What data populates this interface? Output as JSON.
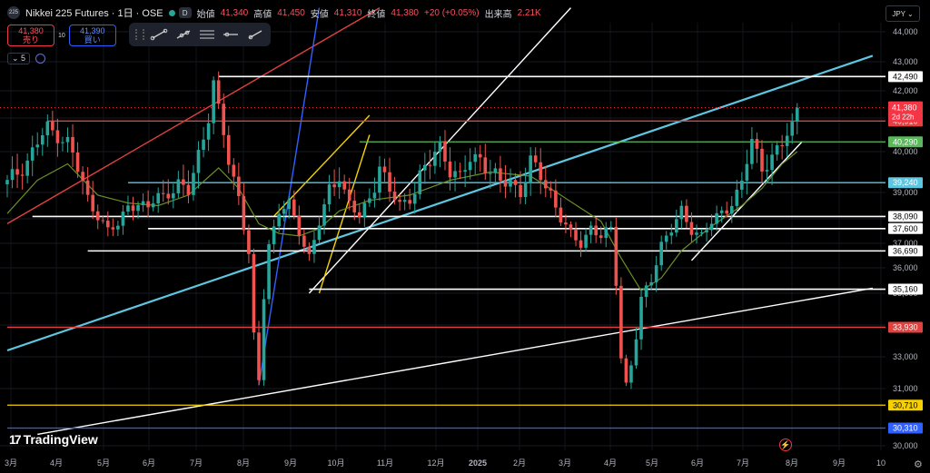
{
  "header": {
    "exchange_badge": "225",
    "symbol": "Nikkei 225 Futures · 1日 · OSE",
    "badge_d": "D",
    "status_colors": [
      "#26a69a",
      "#f23645",
      "#f7a600"
    ],
    "open_label": "始値",
    "open": "41,340",
    "high_label": "高値",
    "high": "41,450",
    "low_label": "安値",
    "low": "41,310",
    "close_label": "終値",
    "close": "41,380",
    "change": "+20 (+0.05%)",
    "volume_label": "出来高",
    "volume": "2.21K"
  },
  "trade": {
    "sell_price": "41,380",
    "sell_label": "売り",
    "spread": "10",
    "buy_price": "41,390",
    "buy_label": "買い"
  },
  "toolbar": {
    "icons": [
      "drag-handle-icon",
      "trend-line-icon",
      "trend-line-alt-icon",
      "parallel-channel-icon",
      "horizontal-line-icon",
      "ray-icon"
    ]
  },
  "indicator": {
    "count": "5"
  },
  "currency": "JPY",
  "brand": "TradingView",
  "chart_data": {
    "type": "candlestick",
    "y_ticks": [
      30000,
      31000,
      33000,
      34000,
      35000,
      36000,
      37000,
      38000,
      39000,
      40000,
      41000,
      42000,
      43000,
      44000
    ],
    "y_tick_labels": [
      "30,000",
      "31,000",
      "33,000",
      "34,000",
      "35,000",
      "36,000",
      "37,000",
      "38,000",
      "39,000",
      "40,000",
      "41,000",
      "42,000",
      "43,000",
      "44,000"
    ],
    "ylim": [
      29820,
      44820
    ],
    "x_ticks": [
      "3月",
      "4月",
      "5月",
      "6月",
      "7月",
      "8月",
      "9月",
      "10月",
      "11月",
      "12月",
      "2025",
      "2月",
      "3月",
      "4月",
      "5月",
      "6月",
      "7月",
      "8月",
      "9月",
      "10"
    ],
    "price_path": [
      [
        0,
        39200
      ],
      [
        4,
        39800
      ],
      [
        8,
        40700
      ],
      [
        12,
        40300
      ],
      [
        16,
        38800
      ],
      [
        20,
        37500
      ],
      [
        22,
        37700
      ],
      [
        24,
        38600
      ],
      [
        28,
        38400
      ],
      [
        30,
        38900
      ],
      [
        34,
        39100
      ],
      [
        36,
        39000
      ],
      [
        38,
        40000
      ],
      [
        40,
        41000
      ],
      [
        41,
        42200
      ],
      [
        42,
        41300
      ],
      [
        44,
        39800
      ],
      [
        46,
        38900
      ],
      [
        48,
        36500
      ],
      [
        49,
        33500
      ],
      [
        50,
        31500
      ],
      [
        51,
        35000
      ],
      [
        52,
        37000
      ],
      [
        54,
        38300
      ],
      [
        56,
        38500
      ],
      [
        58,
        37500
      ],
      [
        60,
        36500
      ],
      [
        62,
        37800
      ],
      [
        64,
        39000
      ],
      [
        66,
        39500
      ],
      [
        68,
        38600
      ],
      [
        70,
        38000
      ],
      [
        72,
        38800
      ],
      [
        74,
        39700
      ],
      [
        76,
        39000
      ],
      [
        78,
        38500
      ],
      [
        80,
        38800
      ],
      [
        82,
        39400
      ],
      [
        84,
        39700
      ],
      [
        86,
        40200
      ],
      [
        88,
        39600
      ],
      [
        90,
        39300
      ],
      [
        92,
        39800
      ],
      [
        94,
        39900
      ],
      [
        96,
        39500
      ],
      [
        98,
        39200
      ],
      [
        100,
        39300
      ],
      [
        102,
        39000
      ],
      [
        104,
        39700
      ],
      [
        106,
        39400
      ],
      [
        108,
        39000
      ],
      [
        110,
        38000
      ],
      [
        112,
        37300
      ],
      [
        114,
        37000
      ],
      [
        116,
        37700
      ],
      [
        118,
        37200
      ],
      [
        120,
        37600
      ],
      [
        121,
        35500
      ],
      [
        122,
        33000
      ],
      [
        123,
        31300
      ],
      [
        124,
        32500
      ],
      [
        125,
        33600
      ],
      [
        126,
        34700
      ],
      [
        128,
        35600
      ],
      [
        130,
        37000
      ],
      [
        132,
        37500
      ],
      [
        134,
        38300
      ],
      [
        136,
        37600
      ],
      [
        138,
        37300
      ],
      [
        140,
        37800
      ],
      [
        142,
        38300
      ],
      [
        144,
        38600
      ],
      [
        146,
        39200
      ],
      [
        148,
        40300
      ],
      [
        150,
        39700
      ],
      [
        152,
        39800
      ],
      [
        154,
        40200
      ],
      [
        156,
        40800
      ],
      [
        157,
        41380
      ]
    ],
    "moving_average": [
      [
        0,
        38200
      ],
      [
        6,
        39300
      ],
      [
        12,
        39700
      ],
      [
        18,
        38900
      ],
      [
        24,
        38600
      ],
      [
        30,
        38500
      ],
      [
        36,
        38900
      ],
      [
        42,
        39600
      ],
      [
        46,
        39100
      ],
      [
        50,
        37800
      ],
      [
        54,
        37400
      ],
      [
        58,
        37300
      ],
      [
        62,
        37600
      ],
      [
        66,
        38300
      ],
      [
        72,
        38700
      ],
      [
        80,
        38900
      ],
      [
        88,
        39300
      ],
      [
        96,
        39500
      ],
      [
        104,
        39400
      ],
      [
        110,
        38900
      ],
      [
        114,
        38400
      ],
      [
        118,
        37900
      ],
      [
        122,
        36400
      ],
      [
        126,
        35100
      ],
      [
        130,
        35600
      ],
      [
        134,
        36700
      ],
      [
        140,
        37700
      ],
      [
        146,
        38500
      ],
      [
        150,
        39100
      ],
      [
        154,
        39700
      ],
      [
        157,
        40000
      ]
    ],
    "horizontal_levels": [
      {
        "value": 42490,
        "color": "#ffffff",
        "label": "42,490",
        "x_start": 42
      },
      {
        "value": 40910,
        "color": "#e0423f",
        "label": "40,910",
        "x_start": 8
      },
      {
        "value": 40290,
        "color": "#5cb85c",
        "label": "40,290",
        "x_start": 70
      },
      {
        "value": 39240,
        "color": "#5fc6e0",
        "label": "39,240",
        "x_start": 24
      },
      {
        "value": 38090,
        "color": "#ffffff",
        "label": "38,090",
        "x_start": 5
      },
      {
        "value": 37600,
        "color": "#ffffff",
        "label": "37,600",
        "x_start": 28
      },
      {
        "value": 36690,
        "color": "#ffffff",
        "label": "36,690",
        "x_start": 16
      },
      {
        "value": 35160,
        "color": "#ffffff",
        "label": "35,160",
        "x_start": 60
      },
      {
        "value": 33930,
        "color": "#e0423f",
        "label": "33,930",
        "x_start": 0
      },
      {
        "value": 30710,
        "color": "#f7d000",
        "label": "30,710",
        "x_start": 0
      },
      {
        "value": 30310,
        "color": "#3060ff",
        "label": "30,310",
        "x_start": 0
      }
    ],
    "last_price": {
      "value": 41380,
      "label": "41,380",
      "countdown": "2d 22h",
      "color": "#f23645"
    },
    "trend_lines": [
      {
        "color": "#5fc6e0",
        "from": [
          0,
          33200
        ],
        "to": [
          172,
          43200
        ]
      },
      {
        "color": "#ffffff",
        "from": [
          6,
          30200
        ],
        "to": [
          172,
          35200
        ]
      },
      {
        "color": "#e0423f",
        "from": [
          0,
          37800
        ],
        "to": [
          74,
          44800
        ]
      },
      {
        "color": "#ffffff",
        "from": [
          60,
          35000
        ],
        "to": [
          112,
          44800
        ]
      },
      {
        "color": "#3060ff",
        "from": [
          50,
          31200
        ],
        "to": [
          62,
          44800
        ]
      },
      {
        "color": "#f7d000",
        "from": [
          53,
          38100
        ],
        "to": [
          72,
          41100
        ]
      },
      {
        "color": "#f7d000",
        "from": [
          62,
          35000
        ],
        "to": [
          72,
          40500
        ]
      },
      {
        "color": "#ffffff",
        "from": [
          136,
          36300
        ],
        "to": [
          158,
          40300
        ]
      }
    ]
  }
}
